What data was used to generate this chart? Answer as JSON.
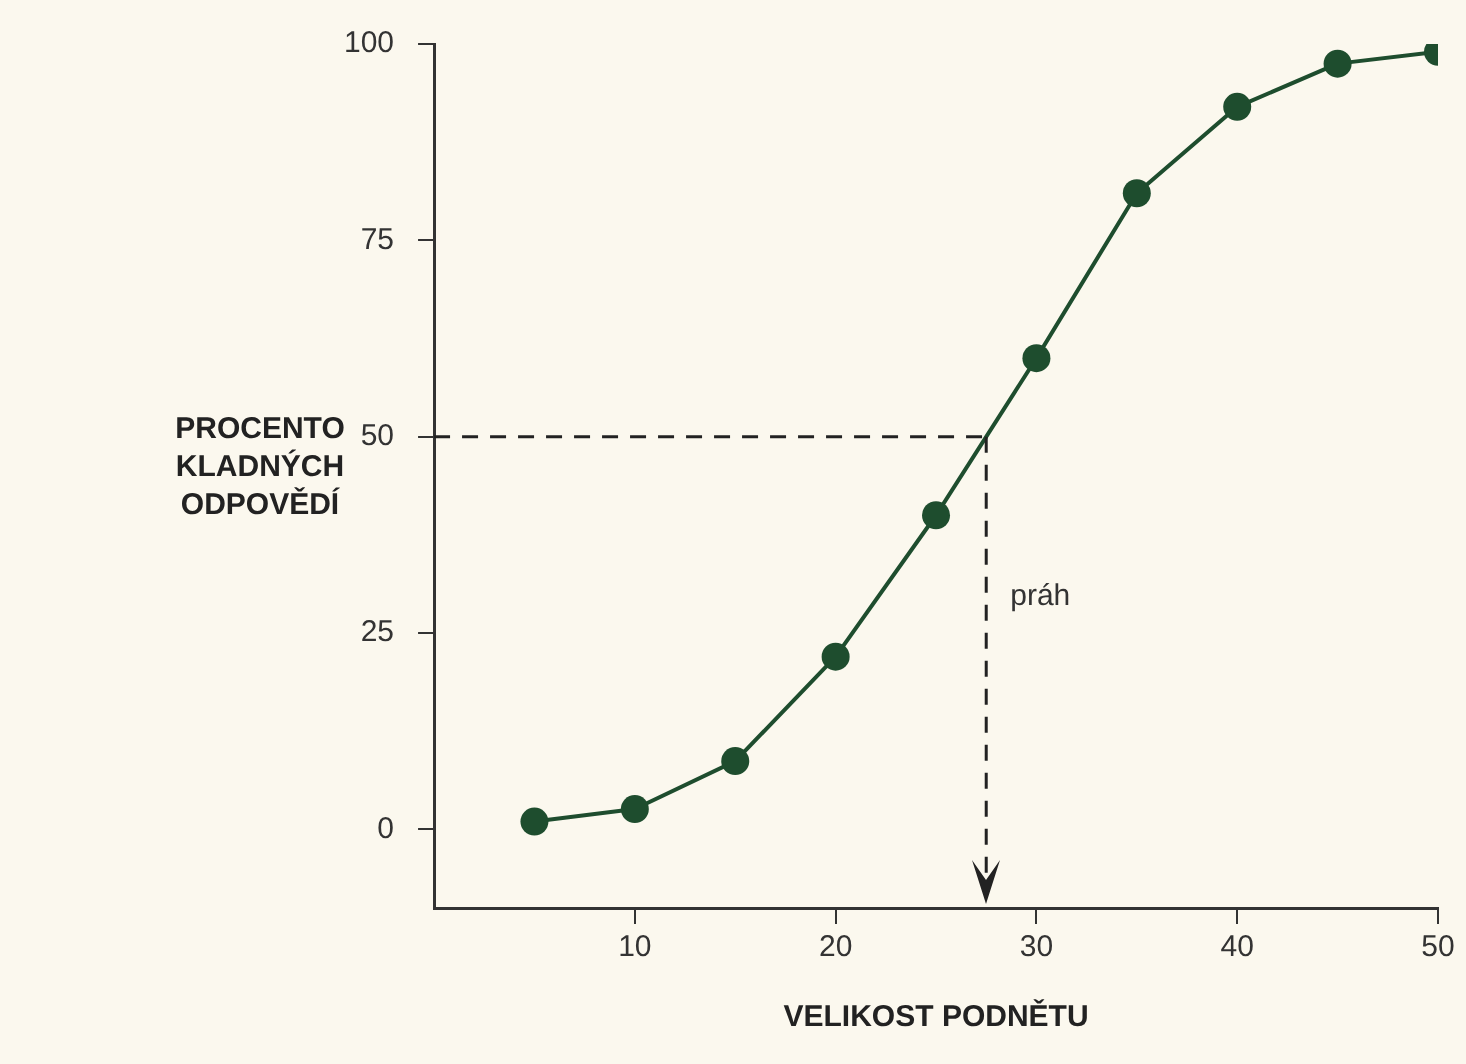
{
  "chart_data": {
    "type": "line",
    "xlabel": "VELIKOST PODNĚTU",
    "ylabel": "PROCENTO\nKLADNÝCH\nODPOVĚDÍ",
    "x": [
      5,
      10,
      15,
      20,
      25,
      30,
      35,
      40,
      45,
      50
    ],
    "series": [
      {
        "color": "#1e4d2e",
        "values": [
          1,
          2.6,
          8.7,
          22,
          40,
          60,
          81,
          92,
          97.5,
          99
        ]
      }
    ],
    "xlim": [
      0,
      50
    ],
    "xticks": [
      10,
      20,
      30,
      40,
      50
    ],
    "ylim": [
      -10,
      100
    ],
    "yticks": [
      0,
      25,
      50,
      75,
      100
    ],
    "ref_lines": [
      {
        "axis": "y",
        "value": 50,
        "line_style": "dashed",
        "color": "#222222"
      },
      {
        "axis": "x",
        "value": 27.5,
        "label": "práh",
        "line_style": "dashed",
        "color": "#222222"
      }
    ],
    "grid": false,
    "legend": false,
    "marker": "circle",
    "line_style": "solid"
  }
}
